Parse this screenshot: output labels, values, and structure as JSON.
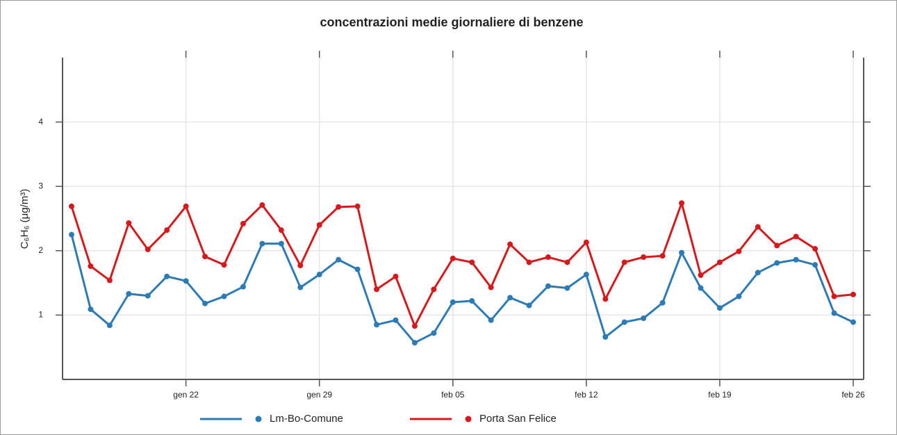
{
  "chart_data": {
    "type": "line",
    "title": "concentrazioni medie giornaliere di benzene",
    "y_label": "C₆H₆ (μg/m³)",
    "categories": [
      null,
      null,
      null,
      null,
      null,
      null,
      "gen 22",
      null,
      null,
      null,
      null,
      null,
      null,
      "gen 29",
      null,
      null,
      null,
      null,
      null,
      null,
      "feb 05",
      null,
      null,
      null,
      null,
      null,
      null,
      "feb 12",
      null,
      null,
      null,
      null,
      null,
      null,
      "feb 19",
      null,
      null,
      null,
      null,
      null,
      null,
      "feb 26"
    ],
    "series": [
      {
        "name": "Lm-Bo-Comune",
        "color": "#2c7bb6",
        "values": [
          2.25,
          1.09,
          0.84,
          1.33,
          1.3,
          1.6,
          1.53,
          1.18,
          1.29,
          1.44,
          2.11,
          2.11,
          1.43,
          1.63,
          1.86,
          1.71,
          0.85,
          0.92,
          0.57,
          0.72,
          1.2,
          1.22,
          0.92,
          1.27,
          1.15,
          1.45,
          1.42,
          1.63,
          0.66,
          0.89,
          0.95,
          1.19,
          1.97,
          1.42,
          1.11,
          1.29,
          1.66,
          1.81,
          1.86,
          1.78,
          1.03,
          0.89
        ]
      },
      {
        "name": "Porta San Felice",
        "color": "#d7191c",
        "values": [
          2.69,
          1.76,
          1.54,
          2.43,
          2.02,
          2.32,
          2.69,
          1.91,
          1.78,
          2.42,
          2.71,
          2.32,
          1.77,
          2.4,
          2.68,
          2.69,
          1.4,
          1.6,
          0.83,
          1.4,
          1.88,
          1.82,
          1.43,
          2.1,
          1.82,
          1.9,
          1.82,
          2.13,
          1.25,
          1.82,
          1.9,
          1.92,
          2.74,
          1.62,
          1.82,
          1.99,
          2.37,
          2.08,
          2.22,
          2.03,
          1.29,
          1.32
        ]
      }
    ],
    "ylim": [
      0,
      5
    ],
    "yticks": [
      1,
      2,
      3,
      4
    ],
    "grid": true,
    "legend": "bottom"
  }
}
